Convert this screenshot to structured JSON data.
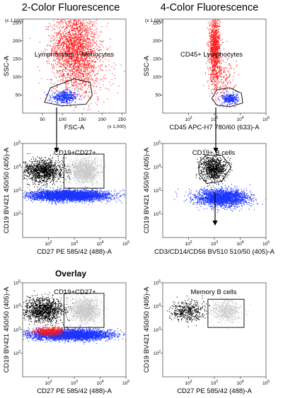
{
  "titles": {
    "left": "2-Color Fluorescence",
    "right": "4-Color Fluorescence",
    "overlay": "Overlay"
  },
  "colors": {
    "red": "#ff1a1a",
    "blue": "#1a33ff",
    "black": "#000000",
    "gray": "#c8c8c8",
    "axis": "#555555",
    "gate": "#000000"
  },
  "chart_data": [
    {
      "id": "p1",
      "type": "scatter",
      "title": "2-Color Fluorescence",
      "xlabel": "FSC-A",
      "ylabel": "SSC-A",
      "xscale": "linear",
      "yscale": "linear",
      "xlim": [
        0,
        260
      ],
      "ylim": [
        0,
        260
      ],
      "xticks": [
        50,
        100,
        150,
        200,
        250
      ],
      "yticks": [
        50,
        100,
        150,
        200,
        250
      ],
      "x_multiplier_label": "(x 1,000)",
      "y_multiplier_label": "(x 1,000)",
      "gate": {
        "label": "Lymphocytes + Monocytes",
        "shape": "polygon",
        "points": [
          [
            55,
            30
          ],
          [
            70,
            70
          ],
          [
            130,
            95
          ],
          [
            170,
            85
          ],
          [
            175,
            50
          ],
          [
            160,
            25
          ],
          [
            100,
            20
          ]
        ]
      },
      "series": [
        {
          "color": "red",
          "n": 2600,
          "clusters": [
            {
              "cx": 130,
              "cy": 185,
              "sx": 28,
              "sy": 48,
              "frac": 0.8
            },
            {
              "cx": 150,
              "cy": 110,
              "sx": 35,
              "sy": 40,
              "frac": 0.2
            }
          ]
        },
        {
          "color": "blue",
          "n": 500,
          "clusters": [
            {
              "cx": 105,
              "cy": 45,
              "sx": 17,
              "sy": 8,
              "frac": 1
            }
          ]
        }
      ]
    },
    {
      "id": "p2",
      "type": "scatter",
      "title": "4-Color Fluorescence",
      "xlabel": "CD45 APC-H7 780/60 (633)-A",
      "ylabel": "SSC-A",
      "xscale": "log",
      "yscale": "linear",
      "xlim": [
        10,
        100000
      ],
      "ylim": [
        0,
        260
      ],
      "xticks": [
        100,
        1000,
        10000,
        100000
      ],
      "yticks": [
        50,
        100,
        150,
        200,
        250
      ],
      "y_multiplier_label": "(x 1,000)",
      "gate": {
        "label": "CD45+ Lymphocytes",
        "shape": "polygon",
        "points": [
          [
            2.9,
            40
          ],
          [
            3.1,
            65
          ],
          [
            3.6,
            70
          ],
          [
            4.05,
            55
          ],
          [
            4.1,
            28
          ],
          [
            3.6,
            18
          ],
          [
            3.1,
            22
          ]
        ]
      },
      "series": [
        {
          "color": "red",
          "n": 1500,
          "clusters": [
            {
              "cx": 3.0,
              "cy": 180,
              "sx": 0.1,
              "sy": 45,
              "frac": 0.85
            },
            {
              "cx": 3.3,
              "cy": 100,
              "sx": 0.25,
              "sy": 30,
              "frac": 0.15
            }
          ]
        },
        {
          "color": "blue",
          "n": 350,
          "clusters": [
            {
              "cx": 3.6,
              "cy": 40,
              "sx": 0.15,
              "sy": 8,
              "frac": 1
            }
          ]
        }
      ]
    },
    {
      "id": "p3",
      "type": "scatter",
      "xlabel": "CD27 PE 585/42 (488)-A",
      "ylabel": "CD19 BV421 450/50 (405)-A",
      "xscale": "log",
      "yscale": "log",
      "xlim": [
        10,
        100000
      ],
      "ylim": [
        10,
        100000
      ],
      "xticks": [
        100,
        1000,
        10000,
        100000
      ],
      "yticks": [
        100,
        1000,
        10000,
        100000
      ],
      "gate": {
        "label": "CD19+CD27+",
        "shape": "rect",
        "x0": 2.6,
        "x1": 4.15,
        "y0": 3.1,
        "y1": 4.55
      },
      "series": [
        {
          "color": "blue",
          "n": 4200,
          "clusters": [
            {
              "cx": 2.8,
              "cy": 2.8,
              "sx": 0.75,
              "sy": 0.11,
              "frac": 1
            }
          ]
        },
        {
          "color": "black",
          "n": 1200,
          "clusters": [
            {
              "cx": 1.8,
              "cy": 3.85,
              "sx": 0.4,
              "sy": 0.25,
              "frac": 1
            }
          ]
        },
        {
          "color": "gray",
          "n": 1300,
          "clusters": [
            {
              "cx": 3.4,
              "cy": 3.85,
              "sx": 0.28,
              "sy": 0.25,
              "frac": 1
            }
          ]
        }
      ]
    },
    {
      "id": "p4",
      "type": "scatter",
      "xlabel": "CD3/CD14/CD56 BV510 510/50 (405)-A",
      "ylabel": "CD19 BV421 450/50 (405)-A",
      "xscale": "log",
      "yscale": "log",
      "xlim": [
        10,
        100000
      ],
      "ylim": [
        10,
        100000
      ],
      "xticks": [
        100,
        1000,
        10000,
        100000
      ],
      "yticks": [
        100,
        1000,
        10000,
        100000
      ],
      "gate": {
        "label": "CD19+ B cells",
        "shape": "polygon",
        "points": [
          [
            2.4,
            4.2
          ],
          [
            2.7,
            4.5
          ],
          [
            3.3,
            4.5
          ],
          [
            3.65,
            4.0
          ],
          [
            3.3,
            3.4
          ],
          [
            2.7,
            3.3
          ],
          [
            2.4,
            3.7
          ]
        ]
      },
      "series": [
        {
          "color": "blue",
          "n": 2400,
          "clusters": [
            {
              "cx": 3.3,
              "cy": 2.7,
              "sx": 0.5,
              "sy": 0.18,
              "frac": 1
            }
          ]
        },
        {
          "color": "black",
          "n": 900,
          "clusters": [
            {
              "cx": 2.95,
              "cy": 3.95,
              "sx": 0.25,
              "sy": 0.25,
              "frac": 1
            }
          ]
        }
      ]
    },
    {
      "id": "p5",
      "type": "scatter",
      "title": "Overlay",
      "xlabel": "CD27 PE 585/42 (488)-A",
      "ylabel": "CD19 BV421 450/50 (405)-A",
      "xscale": "log",
      "yscale": "log",
      "xlim": [
        10,
        100000
      ],
      "ylim": [
        10,
        100000
      ],
      "xticks": [
        100,
        1000,
        10000,
        100000
      ],
      "yticks": [
        100,
        1000,
        10000,
        100000
      ],
      "gate": {
        "label": "CD19+CD27+",
        "shape": "rect",
        "x0": 2.6,
        "x1": 4.15,
        "y0": 3.1,
        "y1": 4.55
      },
      "series": [
        {
          "color": "blue",
          "n": 4200,
          "clusters": [
            {
              "cx": 2.8,
              "cy": 2.8,
              "sx": 0.75,
              "sy": 0.11,
              "frac": 1
            }
          ]
        },
        {
          "color": "red",
          "n": 500,
          "clusters": [
            {
              "cx": 2.0,
              "cy": 2.95,
              "sx": 0.3,
              "sy": 0.1,
              "frac": 1
            }
          ]
        },
        {
          "color": "black",
          "n": 1200,
          "clusters": [
            {
              "cx": 1.8,
              "cy": 3.85,
              "sx": 0.4,
              "sy": 0.25,
              "frac": 1
            }
          ]
        },
        {
          "color": "gray",
          "n": 1300,
          "clusters": [
            {
              "cx": 3.4,
              "cy": 3.85,
              "sx": 0.28,
              "sy": 0.25,
              "frac": 1
            }
          ]
        }
      ]
    },
    {
      "id": "p6",
      "type": "scatter",
      "xlabel": "CD27 PE 585/42 (488)-A",
      "ylabel": "CD19 BV421 450/50 (405)-A",
      "xscale": "log",
      "yscale": "log",
      "xlim": [
        10,
        100000
      ],
      "ylim": [
        10,
        100000
      ],
      "xticks": [
        100,
        1000,
        10000,
        100000
      ],
      "yticks": [
        100,
        1000,
        10000,
        100000
      ],
      "gate": {
        "label": "Memory B cells",
        "shape": "rect",
        "x0": 2.75,
        "x1": 4.15,
        "y0": 3.1,
        "y1": 4.3
      },
      "series": [
        {
          "color": "black",
          "n": 450,
          "clusters": [
            {
              "cx": 1.95,
              "cy": 3.8,
              "sx": 0.35,
              "sy": 0.22,
              "frac": 1
            }
          ]
        },
        {
          "color": "gray",
          "n": 600,
          "clusters": [
            {
              "cx": 3.45,
              "cy": 3.8,
              "sx": 0.28,
              "sy": 0.22,
              "frac": 1
            }
          ]
        }
      ]
    }
  ]
}
